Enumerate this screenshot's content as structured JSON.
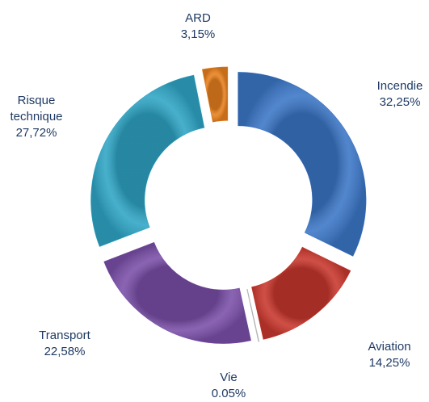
{
  "chart_data": {
    "type": "donut",
    "categories": [
      "Incendie",
      "Aviation",
      "Vie",
      "Transport",
      "Risque technique",
      "ARD"
    ],
    "values": [
      32.25,
      14.25,
      0.05,
      22.58,
      27.72,
      3.15
    ],
    "value_labels": [
      "32,25%",
      "14,25%",
      "0.05%",
      "22,58%",
      "27,72%",
      "3,15%"
    ],
    "colors": [
      "#3b76c6",
      "#c8372d",
      "#bfbfbf",
      "#7a4fa8",
      "#2fa5c5",
      "#e8801e"
    ]
  }
}
